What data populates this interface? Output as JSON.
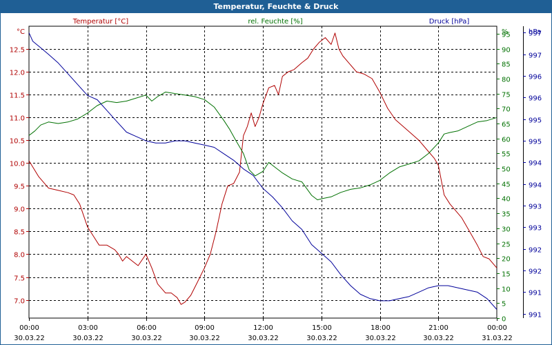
{
  "window": {
    "title": "Temperatur, Feuchte & Druck"
  },
  "chart_data": {
    "type": "line",
    "title": "Temperatur, Feuchte & Druck",
    "grid": true,
    "x": {
      "ticks": [
        {
          "time": "00:00",
          "date": "30.03.22"
        },
        {
          "time": "03:00",
          "date": "30.03.22"
        },
        {
          "time": "06:00",
          "date": "30.03.22"
        },
        {
          "time": "09:00",
          "date": "30.03.22"
        },
        {
          "time": "12:00",
          "date": "30.03.22"
        },
        {
          "time": "15:00",
          "date": "30.03.22"
        },
        {
          "time": "18:00",
          "date": "30.03.22"
        },
        {
          "time": "21:00",
          "date": "30.03.22"
        },
        {
          "time": "00:00",
          "date": "31.03.22"
        }
      ],
      "range_hours": [
        0,
        24
      ]
    },
    "axes": {
      "temperature": {
        "label": "Temperatur [°C]",
        "unit": "°C",
        "color": "#b00000",
        "ylim": [
          6.6,
          13.0
        ],
        "ticks": [
          "7.0",
          "7.5",
          "8.0",
          "8.5",
          "9.0",
          "9.5",
          "10.0",
          "10.5",
          "11.0",
          "11.5",
          "12.0",
          "12.5"
        ]
      },
      "humidity": {
        "label": "rel. Feuchte [%]",
        "unit": "%",
        "color": "#007000",
        "ylim": [
          0,
          97.5
        ],
        "ticks": [
          "0",
          "5",
          "10",
          "15",
          "20",
          "25",
          "30",
          "35",
          "40",
          "45",
          "50",
          "55",
          "60",
          "65",
          "70",
          "75",
          "80",
          "85",
          "90",
          "95"
        ]
      },
      "pressure": {
        "label": "Druck [hPa]",
        "unit": "hPa",
        "color": "#00009a",
        "ylim": [
          990.55,
          997.3
        ],
        "ticks": [
          {
            "v": 997.15,
            "label": "997"
          },
          {
            "v": 996.65,
            "label": "997"
          },
          {
            "v": 996.15,
            "label": "996"
          },
          {
            "v": 995.65,
            "label": "996"
          },
          {
            "v": 995.15,
            "label": "995"
          },
          {
            "v": 994.65,
            "label": "995"
          },
          {
            "v": 994.15,
            "label": "994"
          },
          {
            "v": 993.65,
            "label": "994"
          },
          {
            "v": 993.15,
            "label": "993"
          },
          {
            "v": 992.65,
            "label": "993"
          },
          {
            "v": 992.15,
            "label": "992"
          },
          {
            "v": 991.65,
            "label": "992"
          },
          {
            "v": 991.15,
            "label": "991"
          },
          {
            "v": 990.65,
            "label": "991"
          }
        ]
      }
    },
    "series": [
      {
        "name": "Temperatur [°C]",
        "axis": "temperature",
        "color": "#b00000",
        "points": [
          [
            0,
            10.05
          ],
          [
            0.5,
            9.7
          ],
          [
            1,
            9.45
          ],
          [
            1.5,
            9.4
          ],
          [
            2,
            9.35
          ],
          [
            2.3,
            9.3
          ],
          [
            2.6,
            9.1
          ],
          [
            3,
            8.6
          ],
          [
            3.3,
            8.4
          ],
          [
            3.6,
            8.2
          ],
          [
            4,
            8.2
          ],
          [
            4.4,
            8.1
          ],
          [
            4.6,
            8.0
          ],
          [
            4.8,
            7.85
          ],
          [
            5,
            7.95
          ],
          [
            5.3,
            7.85
          ],
          [
            5.6,
            7.75
          ],
          [
            6,
            8.0
          ],
          [
            6.3,
            7.7
          ],
          [
            6.6,
            7.35
          ],
          [
            7,
            7.15
          ],
          [
            7.3,
            7.15
          ],
          [
            7.6,
            7.05
          ],
          [
            7.8,
            6.9
          ],
          [
            8.0,
            6.95
          ],
          [
            8.3,
            7.1
          ],
          [
            8.6,
            7.35
          ],
          [
            9,
            7.7
          ],
          [
            9.3,
            8.0
          ],
          [
            9.6,
            8.5
          ],
          [
            9.9,
            9.1
          ],
          [
            10.2,
            9.5
          ],
          [
            10.5,
            9.55
          ],
          [
            10.8,
            9.8
          ],
          [
            11.0,
            10.6
          ],
          [
            11.2,
            10.8
          ],
          [
            11.4,
            11.1
          ],
          [
            11.6,
            10.8
          ],
          [
            11.8,
            11.0
          ],
          [
            12.0,
            11.3
          ],
          [
            12.3,
            11.65
          ],
          [
            12.6,
            11.7
          ],
          [
            12.8,
            11.5
          ],
          [
            13.0,
            11.9
          ],
          [
            13.3,
            12.0
          ],
          [
            13.6,
            12.05
          ],
          [
            14.0,
            12.2
          ],
          [
            14.3,
            12.3
          ],
          [
            14.6,
            12.5
          ],
          [
            14.9,
            12.65
          ],
          [
            15.2,
            12.75
          ],
          [
            15.5,
            12.6
          ],
          [
            15.7,
            12.85
          ],
          [
            15.9,
            12.5
          ],
          [
            16.1,
            12.35
          ],
          [
            16.4,
            12.2
          ],
          [
            16.8,
            12.0
          ],
          [
            17.2,
            11.95
          ],
          [
            17.6,
            11.85
          ],
          [
            18.0,
            11.55
          ],
          [
            18.4,
            11.2
          ],
          [
            18.8,
            10.95
          ],
          [
            19.2,
            10.8
          ],
          [
            19.6,
            10.65
          ],
          [
            20.0,
            10.5
          ],
          [
            20.4,
            10.3
          ],
          [
            20.8,
            10.1
          ],
          [
            21.0,
            9.95
          ],
          [
            21.3,
            9.3
          ],
          [
            21.6,
            9.1
          ],
          [
            21.9,
            8.95
          ],
          [
            22.2,
            8.8
          ],
          [
            22.6,
            8.5
          ],
          [
            23.0,
            8.2
          ],
          [
            23.3,
            7.95
          ],
          [
            23.6,
            7.9
          ],
          [
            24.0,
            7.7
          ]
        ]
      },
      {
        "name": "rel. Feuchte [%]",
        "axis": "humidity",
        "color": "#007000",
        "points": [
          [
            0,
            61.0
          ],
          [
            0.3,
            62.5
          ],
          [
            0.6,
            64.5
          ],
          [
            1,
            65.5
          ],
          [
            1.5,
            65.0
          ],
          [
            2,
            65.5
          ],
          [
            2.5,
            66.5
          ],
          [
            3,
            68.5
          ],
          [
            3.5,
            71.0
          ],
          [
            4,
            72.5
          ],
          [
            4.5,
            72.0
          ],
          [
            5,
            72.5
          ],
          [
            5.5,
            73.5
          ],
          [
            6,
            74.5
          ],
          [
            6.3,
            72.5
          ],
          [
            6.6,
            74.0
          ],
          [
            7,
            75.5
          ],
          [
            7.5,
            75.0
          ],
          [
            8,
            74.5
          ],
          [
            8.5,
            74.0
          ],
          [
            9,
            73.0
          ],
          [
            9.5,
            70.5
          ],
          [
            10,
            66.0
          ],
          [
            10.3,
            63.0
          ],
          [
            10.6,
            59.5
          ],
          [
            11.0,
            55.0
          ],
          [
            11.3,
            49.5
          ],
          [
            11.6,
            47.5
          ],
          [
            12.0,
            49.0
          ],
          [
            12.3,
            52.0
          ],
          [
            12.6,
            50.5
          ],
          [
            13.0,
            48.5
          ],
          [
            13.5,
            46.5
          ],
          [
            14.0,
            45.5
          ],
          [
            14.5,
            41.0
          ],
          [
            14.8,
            39.5
          ],
          [
            15.1,
            40.0
          ],
          [
            15.5,
            40.5
          ],
          [
            16,
            42.0
          ],
          [
            16.5,
            43.0
          ],
          [
            17,
            43.5
          ],
          [
            17.5,
            44.5
          ],
          [
            18,
            46.0
          ],
          [
            18.5,
            48.5
          ],
          [
            19,
            50.5
          ],
          [
            19.5,
            51.5
          ],
          [
            20,
            52.5
          ],
          [
            20.5,
            55.0
          ],
          [
            21,
            58.5
          ],
          [
            21.3,
            61.5
          ],
          [
            21.6,
            62.0
          ],
          [
            22,
            62.5
          ],
          [
            22.5,
            64.0
          ],
          [
            23,
            65.5
          ],
          [
            23.5,
            66.0
          ],
          [
            24,
            67.0
          ]
        ]
      },
      {
        "name": "Druck [hPa]",
        "axis": "pressure",
        "color": "#00009a",
        "points": [
          [
            0,
            997.15
          ],
          [
            0.2,
            996.95
          ],
          [
            0.6,
            996.8
          ],
          [
            1,
            996.65
          ],
          [
            1.5,
            996.45
          ],
          [
            2,
            996.2
          ],
          [
            2.5,
            995.95
          ],
          [
            3,
            995.7
          ],
          [
            3.5,
            995.6
          ],
          [
            4,
            995.35
          ],
          [
            4.5,
            995.1
          ],
          [
            5,
            994.85
          ],
          [
            5.5,
            994.75
          ],
          [
            6,
            994.65
          ],
          [
            6.5,
            994.6
          ],
          [
            7,
            994.6
          ],
          [
            7.5,
            994.65
          ],
          [
            8,
            994.65
          ],
          [
            8.5,
            994.6
          ],
          [
            9,
            994.55
          ],
          [
            9.5,
            994.5
          ],
          [
            10,
            994.35
          ],
          [
            10.5,
            994.2
          ],
          [
            11,
            994.0
          ],
          [
            11.5,
            993.85
          ],
          [
            12,
            993.55
          ],
          [
            12.5,
            993.35
          ],
          [
            13,
            993.1
          ],
          [
            13.5,
            992.8
          ],
          [
            14,
            992.6
          ],
          [
            14.5,
            992.25
          ],
          [
            15,
            992.05
          ],
          [
            15.5,
            991.85
          ],
          [
            16,
            991.55
          ],
          [
            16.5,
            991.3
          ],
          [
            17,
            991.1
          ],
          [
            17.5,
            991.0
          ],
          [
            18,
            990.95
          ],
          [
            18.5,
            990.95
          ],
          [
            19,
            991.0
          ],
          [
            19.5,
            991.05
          ],
          [
            20,
            991.15
          ],
          [
            20.5,
            991.25
          ],
          [
            21,
            991.3
          ],
          [
            21.5,
            991.3
          ],
          [
            22,
            991.25
          ],
          [
            22.5,
            991.2
          ],
          [
            23,
            991.15
          ],
          [
            23.5,
            991.0
          ],
          [
            24,
            990.75
          ]
        ]
      }
    ]
  }
}
